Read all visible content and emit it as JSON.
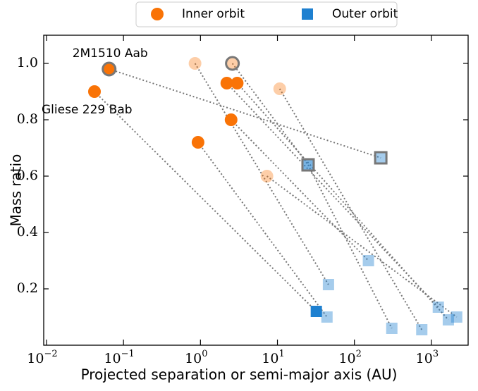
{
  "chart_data": {
    "type": "scatter",
    "xlabel": "Projected separation or semi-major axis (AU)",
    "ylabel": "Mass ratio",
    "xscale": "log",
    "xlim": [
      0.0092,
      3000
    ],
    "ylim": [
      0,
      1.1
    ],
    "xticks": [
      {
        "value": 0.01,
        "label": "10",
        "exponent": "−2"
      },
      {
        "value": 0.1,
        "label": "10",
        "exponent": "−1"
      },
      {
        "value": 1,
        "label": "10",
        "exponent": "0"
      },
      {
        "value": 10,
        "label": "10",
        "exponent": "1"
      },
      {
        "value": 100,
        "label": "10",
        "exponent": "2"
      },
      {
        "value": 1000,
        "label": "10",
        "exponent": "3"
      }
    ],
    "yticks": [
      0.2,
      0.4,
      0.6,
      0.8,
      {
        "value": 1,
        "label": "1.0"
      }
    ],
    "legend": "top",
    "series": [
      {
        "name": "Inner orbit",
        "marker": "circle",
        "color": "#f97306",
        "x": [
          0.065,
          0.042,
          0.85,
          2.6,
          2.2,
          3.0,
          10.7,
          2.5,
          0.93,
          7.3
        ],
        "values": [
          0.98,
          0.9,
          1.0,
          1.0,
          0.93,
          0.93,
          0.91,
          0.8,
          0.72,
          0.6
        ],
        "opacity": [
          1,
          1,
          0.35,
          0.35,
          1,
          1,
          0.35,
          1,
          1,
          0.35
        ],
        "edge": [
          true,
          false,
          false,
          true,
          false,
          false,
          false,
          false,
          false,
          false
        ]
      },
      {
        "name": "Outer orbit",
        "marker": "square",
        "color": "#1e80d0",
        "x": [
          220,
          32,
          25,
          46,
          1230,
          1660,
          750,
          152,
          44,
          2130,
          306
        ],
        "values": [
          0.665,
          0.12,
          0.64,
          0.215,
          0.135,
          0.09,
          0.055,
          0.3,
          0.1,
          0.1,
          0.06
        ],
        "opacity": [
          0.4,
          1,
          0.6,
          0.4,
          0.4,
          0.4,
          0.4,
          0.4,
          0.4,
          0.4,
          0.4
        ],
        "edge": [
          true,
          false,
          true,
          false,
          false,
          false,
          false,
          false,
          false,
          false,
          false
        ]
      }
    ],
    "links": [
      [
        [
          0,
          0
        ],
        [
          1,
          0
        ]
      ],
      [
        [
          0,
          1
        ],
        [
          1,
          1
        ]
      ],
      [
        [
          0,
          2
        ],
        [
          1,
          3
        ]
      ],
      [
        [
          0,
          3
        ],
        [
          1,
          2
        ]
      ],
      [
        [
          1,
          2
        ],
        [
          1,
          10
        ]
      ],
      [
        [
          0,
          4
        ],
        [
          1,
          4
        ]
      ],
      [
        [
          0,
          5
        ],
        [
          1,
          5
        ]
      ],
      [
        [
          0,
          6
        ],
        [
          1,
          6
        ]
      ],
      [
        [
          0,
          7
        ],
        [
          1,
          7
        ]
      ],
      [
        [
          0,
          8
        ],
        [
          1,
          8
        ]
      ],
      [
        [
          0,
          9
        ],
        [
          1,
          9
        ]
      ]
    ],
    "annotations": [
      {
        "text": "2M1510 Aab",
        "point": [
          0,
          0
        ]
      },
      {
        "text": "Gliese 229 Bab",
        "point": [
          0,
          1
        ]
      }
    ]
  }
}
